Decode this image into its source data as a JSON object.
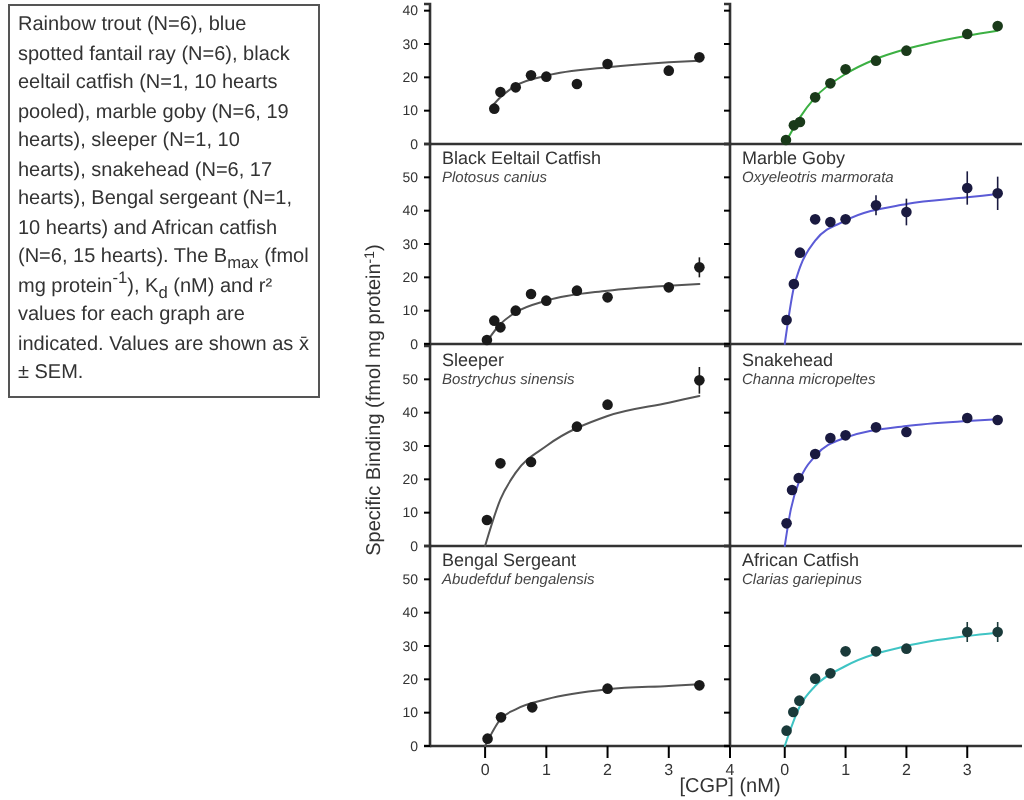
{
  "chart_data": [
    {
      "type": "other",
      "annotations": [
        "Rainbow trout (N=6), blue spotted fantail ray (N=6), black eeltail catfish (N=1, 10 hearts pooled), marble goby (N=6, 19 hearts), sleeper (N=1, 10 hearts), snakehead (N=6, 17 hearts), Bengal sergeant (N=1, 10 hearts) and African catfish (N=6, 15 hearts).  The B$_{max}$ (fmol mg protein$^{-1}$), K$_{d}$ (nM) and r² values for each graph are indicated.  Values are shown as x̄ ± SEM."
      ]
    },
    {
      "type": "scatter",
      "xlim": [
        -0.9,
        4
      ],
      "ylim": [
        0,
        42
      ],
      "yticks": [
        0,
        10,
        20,
        30,
        40
      ],
      "tick_labels": "y",
      "marker": "circle",
      "ylabel": "Specific Binding (fmol mg protein$^{-1}$)",
      "series": [
        {
          "type": "scatter",
          "color": "#1a1a1a",
          "x": [
            0.15,
            0.25,
            0.5,
            0.75,
            1,
            1.5,
            2,
            3,
            3.5
          ],
          "values": [
            10.6,
            15.6,
            17,
            20.6,
            20.2,
            18,
            24,
            22,
            26
          ]
        },
        {
          "type": "line",
          "color": "#555555",
          "x": [
            0.1,
            0.25,
            0.5,
            1,
            2,
            3,
            3.5
          ],
          "values": [
            11,
            14,
            17.5,
            20.5,
            23,
            24.5,
            25
          ],
          "marker": "none"
        }
      ]
    },
    {
      "type": "scatter",
      "xlim": [
        -0.9,
        3.9
      ],
      "ylim": [
        0,
        42
      ],
      "yticks": [
        0,
        10,
        20,
        30,
        40
      ],
      "tick_labels": false,
      "marker": "circle",
      "series": [
        {
          "type": "scatter",
          "color": "#1a3a1a",
          "x": [
            0.02,
            0.15,
            0.25,
            0.5,
            0.75,
            1,
            1.5,
            2,
            3,
            3.5
          ],
          "values": [
            1.2,
            5.6,
            6.6,
            14,
            18.2,
            22.4,
            25,
            28,
            33,
            35.4
          ]
        },
        {
          "type": "line",
          "color": "#3cb043",
          "x": [
            0,
            0.25,
            0.5,
            1,
            1.5,
            2,
            3,
            3.5
          ],
          "values": [
            0,
            8,
            14,
            21,
            25.5,
            28.5,
            32.5,
            34
          ],
          "marker": "none"
        }
      ]
    },
    {
      "type": "scatter",
      "title": "Black Eeltail Catfish",
      "subtitle": "Plotosus canius",
      "xlim": [
        -0.9,
        4
      ],
      "ylim": [
        0,
        60
      ],
      "yticks": [
        0,
        10,
        20,
        30,
        40,
        50
      ],
      "tick_labels": "y",
      "marker": "circle",
      "series": [
        {
          "type": "scatter",
          "color": "#1a1a1a",
          "x": [
            0.03,
            0.15,
            0.25,
            0.5,
            0.75,
            1,
            1.5,
            2,
            3,
            3.5
          ],
          "values": [
            1.2,
            7,
            5,
            10,
            15,
            13,
            16,
            14,
            17,
            23
          ],
          "errors": [
            null,
            null,
            null,
            null,
            null,
            null,
            null,
            null,
            null,
            3
          ]
        },
        {
          "type": "line",
          "color": "#555555",
          "x": [
            0,
            0.25,
            0.5,
            1,
            2,
            3,
            3.5
          ],
          "values": [
            0,
            6,
            9.5,
            13,
            16,
            17.5,
            18
          ],
          "marker": "none"
        }
      ]
    },
    {
      "type": "scatter",
      "title": "Marble Goby",
      "subtitle": "Oxyeleotris marmorata",
      "xlim": [
        -0.9,
        3.9
      ],
      "ylim": [
        0,
        60
      ],
      "yticks": [
        0,
        10,
        20,
        30,
        40,
        50
      ],
      "tick_labels": false,
      "marker": "circle",
      "series": [
        {
          "type": "scatter",
          "color": "#1a1a40",
          "x": [
            0.03,
            0.15,
            0.25,
            0.5,
            0.75,
            1,
            1.5,
            2,
            3,
            3.5
          ],
          "values": [
            7.2,
            18,
            27.4,
            37.4,
            36.6,
            37.4,
            41.6,
            39.6,
            46.8,
            45.2
          ],
          "errors": [
            null,
            null,
            null,
            null,
            null,
            null,
            3,
            4,
            5,
            5
          ]
        },
        {
          "type": "line",
          "color": "#5b5bd6",
          "x": [
            0,
            0.15,
            0.25,
            0.5,
            1,
            2,
            3,
            3.5
          ],
          "values": [
            0,
            17,
            23,
            31,
            37,
            42,
            44,
            45
          ],
          "marker": "none"
        }
      ]
    },
    {
      "type": "scatter",
      "title": "Sleeper",
      "subtitle": "Bostrychus sinensis",
      "xlim": [
        -0.9,
        4
      ],
      "ylim": [
        0,
        60
      ],
      "yticks": [
        0,
        10,
        20,
        30,
        40,
        50
      ],
      "tick_labels": "y",
      "marker": "circle",
      "series": [
        {
          "type": "scatter",
          "color": "#1a1a1a",
          "x": [
            0.03,
            0.25,
            0.75,
            1.5,
            2,
            3.5
          ],
          "values": [
            7.8,
            24.8,
            25.2,
            35.8,
            42.4,
            49.7
          ],
          "errors": [
            null,
            null,
            null,
            null,
            null,
            4
          ]
        },
        {
          "type": "line",
          "color": "#555555",
          "x": [
            0,
            0.25,
            0.5,
            1,
            2,
            3,
            3.5
          ],
          "values": [
            0,
            14,
            22,
            30,
            39,
            43,
            45
          ],
          "marker": "none"
        }
      ]
    },
    {
      "type": "scatter",
      "title": "Snakehead",
      "subtitle": "Channa micropeltes",
      "xlim": [
        -0.9,
        3.9
      ],
      "ylim": [
        0,
        60
      ],
      "yticks": [
        0,
        10,
        20,
        30,
        40,
        50
      ],
      "tick_labels": false,
      "marker": "circle",
      "series": [
        {
          "type": "scatter",
          "color": "#1a1a40",
          "x": [
            0.03,
            0.12,
            0.23,
            0.5,
            0.75,
            1,
            1.5,
            2,
            3,
            3.5
          ],
          "values": [
            6.8,
            16.8,
            20.4,
            27.6,
            32.4,
            33.2,
            35.6,
            34.2,
            38.4,
            37.8
          ]
        },
        {
          "type": "line",
          "color": "#5b5bd6",
          "x": [
            0,
            0.1,
            0.25,
            0.5,
            1,
            2,
            3,
            3.5
          ],
          "values": [
            0,
            11,
            20,
            27,
            32.5,
            36,
            37.5,
            38
          ],
          "marker": "none"
        }
      ]
    },
    {
      "type": "scatter",
      "title": "Bengal Sergeant",
      "subtitle": "Abudefduf bengalensis",
      "xlim": [
        -0.9,
        4
      ],
      "ylim": [
        0,
        60
      ],
      "yticks": [
        0,
        10,
        20,
        30,
        40,
        50
      ],
      "xticks": [
        0,
        1,
        2,
        3,
        4
      ],
      "marker": "circle",
      "xlabel": "[CGP] (nM)",
      "series": [
        {
          "type": "scatter",
          "color": "#1a1a1a",
          "x": [
            0.04,
            0.26,
            0.77,
            2,
            3.5
          ],
          "values": [
            2.2,
            8.6,
            11.6,
            17.2,
            18.2
          ]
        },
        {
          "type": "line",
          "color": "#555555",
          "x": [
            0,
            0.25,
            0.5,
            1,
            2,
            3,
            3.5
          ],
          "values": [
            0,
            8,
            11,
            14,
            17,
            18,
            18.5
          ],
          "marker": "none"
        }
      ]
    },
    {
      "type": "scatter",
      "title": "African Catfish",
      "subtitle": "Clarias gariepinus",
      "xlim": [
        -0.9,
        3.9
      ],
      "ylim": [
        0,
        60
      ],
      "yticks": [
        0,
        10,
        20,
        30,
        40,
        50
      ],
      "xticks": [
        0,
        1,
        2,
        3
      ],
      "tick_labels": "x",
      "marker": "circle",
      "series": [
        {
          "type": "scatter",
          "color": "#1a3a3a",
          "x": [
            0.03,
            0.14,
            0.24,
            0.5,
            0.75,
            1,
            1.5,
            2,
            3,
            3.5
          ],
          "values": [
            4.6,
            10.2,
            13.6,
            20.2,
            21.8,
            28.4,
            28.4,
            29.2,
            34.2,
            34.2
          ],
          "errors": [
            null,
            null,
            null,
            null,
            null,
            null,
            null,
            null,
            3,
            3
          ]
        },
        {
          "type": "line",
          "color": "#3fc4c4",
          "x": [
            0,
            0.25,
            0.5,
            1,
            2,
            3,
            3.5
          ],
          "values": [
            0,
            12,
            18,
            24,
            30,
            33,
            34
          ],
          "marker": "none"
        }
      ]
    }
  ]
}
